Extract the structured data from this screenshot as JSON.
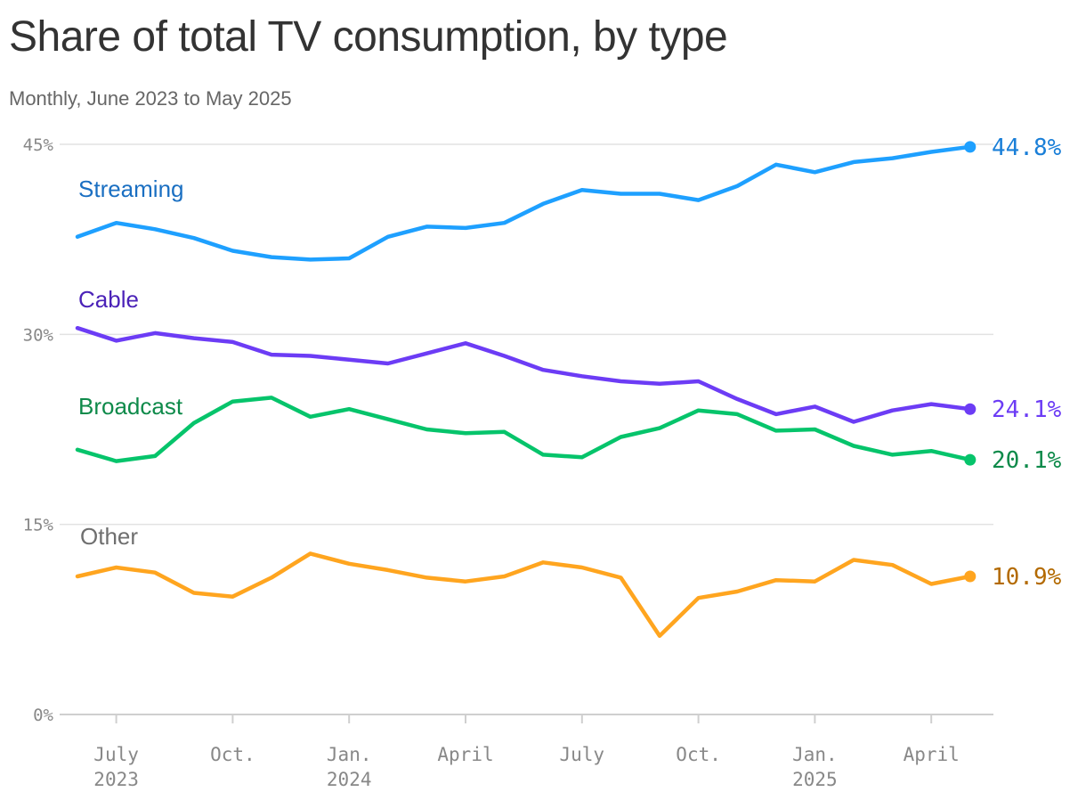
{
  "title": "Share of total TV consumption, by type",
  "subtitle": "Monthly, June 2023 to May 2025",
  "chart_data": {
    "type": "line",
    "x": [
      "2023-06",
      "2023-07",
      "2023-08",
      "2023-09",
      "2023-10",
      "2023-11",
      "2023-12",
      "2024-01",
      "2024-02",
      "2024-03",
      "2024-04",
      "2024-05",
      "2024-06",
      "2024-07",
      "2024-08",
      "2024-09",
      "2024-10",
      "2024-11",
      "2024-12",
      "2025-01",
      "2025-02",
      "2025-03",
      "2025-04",
      "2025-05"
    ],
    "ylim": [
      0,
      45
    ],
    "y_ticks": [
      0,
      15,
      30,
      45
    ],
    "y_tick_labels": [
      "0%",
      "15%",
      "30%",
      "45%"
    ],
    "x_ticks": [
      {
        "x": "2023-07",
        "label": "July",
        "sublabel": "2023"
      },
      {
        "x": "2023-10",
        "label": "Oct.",
        "sublabel": ""
      },
      {
        "x": "2024-01",
        "label": "Jan.",
        "sublabel": "2024"
      },
      {
        "x": "2024-04",
        "label": "April",
        "sublabel": ""
      },
      {
        "x": "2024-07",
        "label": "July",
        "sublabel": ""
      },
      {
        "x": "2024-10",
        "label": "Oct.",
        "sublabel": ""
      },
      {
        "x": "2025-01",
        "label": "Jan.",
        "sublabel": "2025"
      },
      {
        "x": "2025-04",
        "label": "April",
        "sublabel": ""
      }
    ],
    "grid": true,
    "series": [
      {
        "name": "Streaming",
        "color": "#1ea0ff",
        "label_color": "#1a6fc2",
        "end_label": "44.8%",
        "end_label_color": "#1a7fd8",
        "values": [
          37.7,
          38.8,
          38.3,
          37.6,
          36.6,
          36.1,
          35.9,
          36.0,
          37.7,
          38.5,
          38.4,
          38.8,
          40.3,
          41.4,
          41.1,
          41.1,
          40.6,
          41.7,
          43.4,
          42.8,
          43.6,
          43.9,
          44.4,
          44.8
        ]
      },
      {
        "name": "Cable",
        "color": "#6c3cf5",
        "label_color": "#4b22b8",
        "end_label": "24.1%",
        "end_label_color": "#6c3cf5",
        "values": [
          30.5,
          29.5,
          30.1,
          29.7,
          29.4,
          28.4,
          28.3,
          28.0,
          27.7,
          28.5,
          29.3,
          28.3,
          27.2,
          26.7,
          26.3,
          26.1,
          26.3,
          24.9,
          23.7,
          24.3,
          23.1,
          24.0,
          24.5,
          24.1
        ]
      },
      {
        "name": "Broadcast",
        "color": "#06c46b",
        "label_color": "#0e8a4a",
        "end_label": "20.1%",
        "end_label_color": "#0e8a4a",
        "values": [
          20.9,
          20.0,
          20.4,
          23.0,
          24.7,
          25.0,
          23.5,
          24.1,
          23.3,
          22.5,
          22.2,
          22.3,
          20.5,
          20.3,
          21.9,
          22.6,
          24.0,
          23.7,
          22.4,
          22.5,
          21.2,
          20.5,
          20.8,
          20.1
        ]
      },
      {
        "name": "Other",
        "color": "#ffa51f",
        "label_color": "#6f6f6f",
        "end_label": "10.9%",
        "end_label_color": "#b36a00",
        "values": [
          10.9,
          11.6,
          11.2,
          9.6,
          9.3,
          10.8,
          12.7,
          11.9,
          11.4,
          10.8,
          10.5,
          10.9,
          12.0,
          11.6,
          10.8,
          6.2,
          9.2,
          9.7,
          10.6,
          10.5,
          12.2,
          11.8,
          10.3,
          10.9
        ]
      }
    ]
  }
}
